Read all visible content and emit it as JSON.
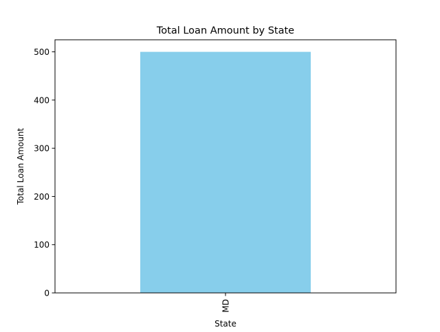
{
  "chart_data": {
    "type": "bar",
    "title": "Total Loan Amount by State",
    "xlabel": "State",
    "ylabel": "Total Loan Amount",
    "categories": [
      "MD"
    ],
    "values": [
      500
    ],
    "ylim": [
      0,
      525
    ],
    "yticks": [
      "0",
      "100",
      "200",
      "300",
      "400",
      "500"
    ],
    "bar_color": "#87CEEB",
    "grid": false,
    "legend": "none"
  }
}
